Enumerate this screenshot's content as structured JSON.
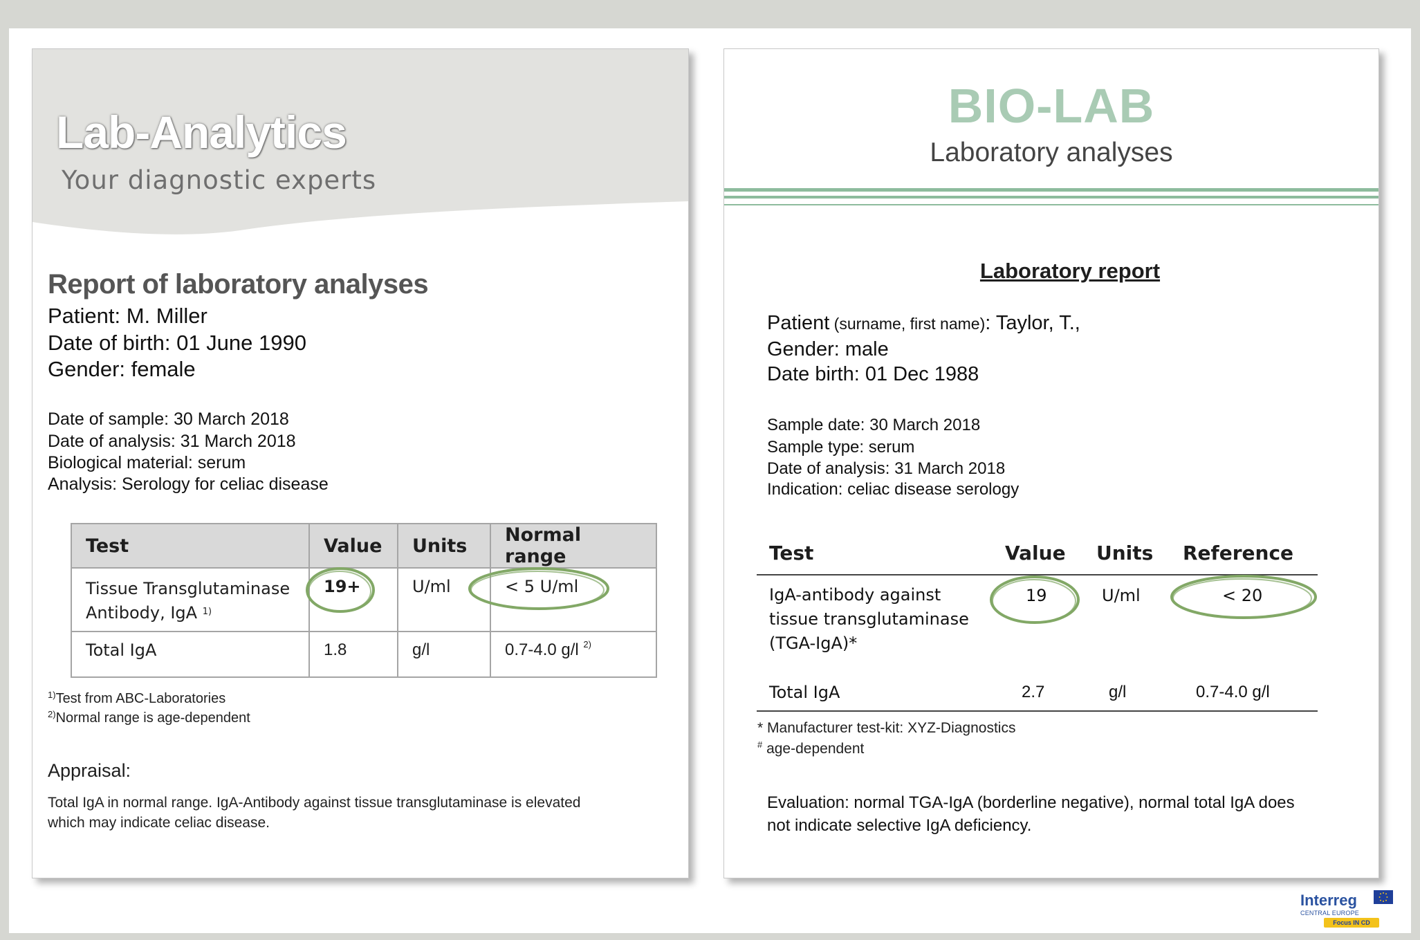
{
  "left_report": {
    "brand_title": "Lab-Analytics",
    "brand_tagline": "Your diagnostic experts",
    "heading": "Report of laboratory analyses",
    "patient_lines": [
      "Patient: M. Miller",
      "Date of birth: 01 June 1990",
      "Gender: female"
    ],
    "info_lines": [
      "Date of sample: 30 March 2018",
      "Date of analysis: 31 March 2018",
      "Biological material: serum",
      "Analysis: Serology for celiac disease"
    ],
    "table": {
      "headers": [
        "Test",
        "Value",
        "Units",
        "Normal range"
      ],
      "row1": {
        "test_line1": "Tissue Transglutaminase",
        "test_line2": "Antibody, IgA",
        "test_note": "1)",
        "value": "19+",
        "units": "U/ml",
        "range": "< 5 U/ml"
      },
      "row2": {
        "test": "Total IgA",
        "value": "1.8",
        "units": "g/l",
        "range": "0.7-4.0 g/l",
        "range_note": "2)"
      }
    },
    "footnotes": [
      {
        "mark": "1)",
        "text": "Test from ABC-Laboratories"
      },
      {
        "mark": "2)",
        "text": "Normal range is age-dependent"
      }
    ],
    "appraisal_label": "Appraisal:",
    "appraisal_lines": [
      "Total IgA in normal range. IgA-Antibody against tissue transglutaminase is elevated",
      "which may indicate celiac disease."
    ]
  },
  "right_report": {
    "brand_title": "BIO-LAB",
    "brand_subtitle": "Laboratory analyses",
    "heading": "Laboratory report",
    "patient": {
      "prefix": "Patient",
      "qualifier": " (surname, first name)",
      "value": ": Taylor, T.,"
    },
    "patient_lines": [
      "Gender: male",
      "Date birth: 01 Dec 1988"
    ],
    "info_lines": [
      "Sample date: 30 March 2018",
      "Sample type: serum",
      "Date of analysis: 31 March 2018",
      "Indication: celiac disease serology"
    ],
    "table": {
      "headers": [
        "Test",
        "Value",
        "Units",
        "Reference"
      ],
      "row1": {
        "test_lines": [
          "IgA-antibody against",
          "tissue transglutaminase",
          "(TGA-IgA)*"
        ],
        "value": "19",
        "units": "U/ml",
        "reference": "< 20"
      },
      "row2": {
        "test": "Total IgA",
        "value": "2.7",
        "units": "g/l",
        "reference": "0.7-4.0 g/l"
      }
    },
    "footnotes": [
      {
        "mark": "*",
        "text": " Manufacturer test-kit: XYZ-Diagnostics"
      },
      {
        "mark": "#",
        "text": " age-dependent"
      }
    ],
    "evaluation_lines": [
      "Evaluation: normal TGA-IgA (borderline negative), normal total IgA does",
      "not indicate selective IgA deficiency."
    ]
  },
  "logo": {
    "name": "Interreg",
    "program": "CENTRAL EUROPE",
    "project": "Focus IN CD"
  },
  "colors": {
    "highlight_circle": "#82a866",
    "biolab_green": "#a9cbb4",
    "rule_green": "#8dbb9d",
    "banner_gray": "#e2e2df"
  }
}
